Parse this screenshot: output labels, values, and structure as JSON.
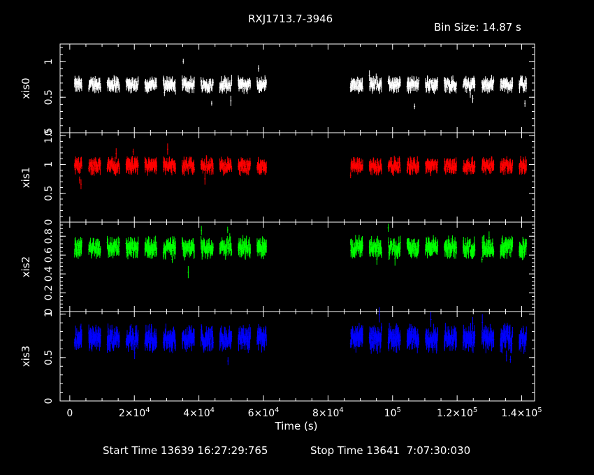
{
  "header": {
    "title": "RXJ1713.7-3946",
    "bin_size": "Bin Size: 14.87 s"
  },
  "footer": {
    "start_time": "Start Time 13639 16:27:29:765",
    "stop_time": "Stop Time 13641  7:07:30:030"
  },
  "colors": {
    "background": "#000000",
    "axes": "#ffffff",
    "xis0": "#ffffff",
    "xis1": "#ff0000",
    "xis2": "#00ff00",
    "xis3": "#0000ff"
  },
  "chart_data": {
    "type": "line",
    "style": "binned light curves with error bars, four stacked panels sharing the time axis",
    "xlabel": "Time (s)",
    "xlim": [
      -3000,
      144000
    ],
    "x_ticks": [
      0,
      20000,
      40000,
      60000,
      80000,
      100000,
      120000,
      140000
    ],
    "x_tick_labels": [
      {
        "base": "0",
        "exp": ""
      },
      {
        "base": "2×10",
        "exp": "4"
      },
      {
        "base": "4×10",
        "exp": "4"
      },
      {
        "base": "6×10",
        "exp": "4"
      },
      {
        "base": "8×10",
        "exp": "4"
      },
      {
        "base": "10",
        "exp": "5"
      },
      {
        "base": "1.2×10",
        "exp": "5"
      },
      {
        "base": "1.4×10",
        "exp": "5"
      }
    ],
    "segments": [
      [
        1500,
        61000
      ],
      [
        87000,
        141500
      ]
    ],
    "panels": [
      {
        "name": "xis0",
        "ylabel": "xis0",
        "ylim": [
          0,
          1.25
        ],
        "y_ticks": [
          0,
          0.5,
          1
        ],
        "y_tick_labels": [
          "0",
          "0.5",
          "1"
        ],
        "mean": 0.68,
        "scatter": 0.06
      },
      {
        "name": "xis1",
        "ylabel": "xis1",
        "ylim": [
          0,
          1.55
        ],
        "y_ticks": [
          0,
          0.5,
          1,
          1.5
        ],
        "y_tick_labels": [
          "0",
          "0.5",
          "1",
          "1.5"
        ],
        "mean": 0.97,
        "scatter": 0.08
      },
      {
        "name": "xis2",
        "ylabel": "xis2",
        "ylim": [
          0,
          0.95
        ],
        "y_ticks": [
          0,
          0.2,
          0.4,
          0.6,
          0.8
        ],
        "y_tick_labels": [
          "0",
          "0.2",
          "0.4",
          "0.6",
          "0.8"
        ],
        "mean": 0.68,
        "scatter": 0.06
      },
      {
        "name": "xis3",
        "ylabel": "xis3",
        "ylim": [
          0,
          1.03
        ],
        "y_ticks": [
          0,
          0.5,
          1
        ],
        "y_tick_labels": [
          "0",
          "0.5",
          "1"
        ],
        "mean": 0.72,
        "scatter": 0.08
      }
    ]
  }
}
